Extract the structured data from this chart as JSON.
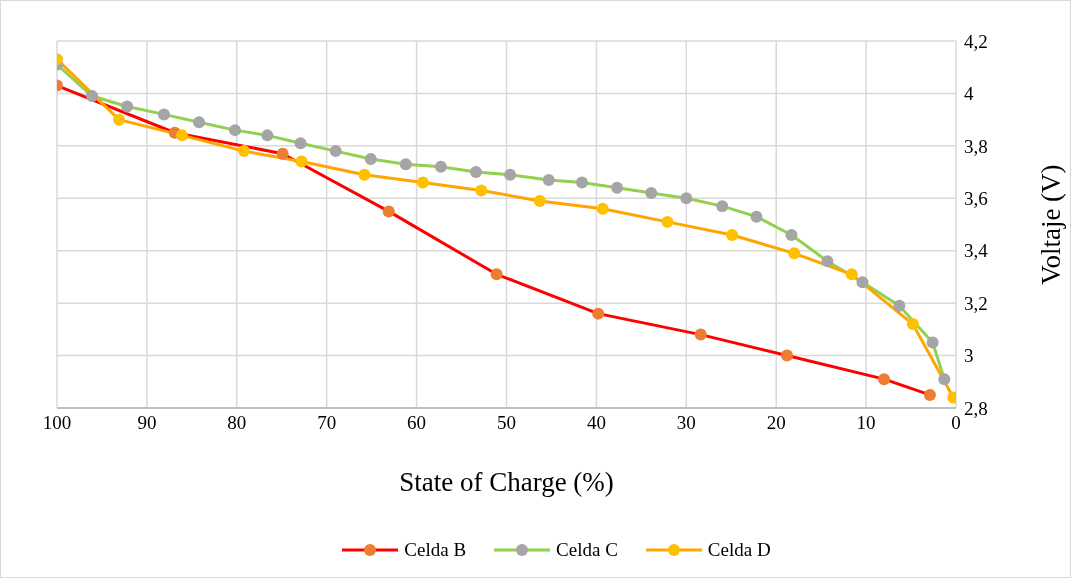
{
  "chart_data": {
    "type": "line",
    "xlabel": "State of Charge (%)",
    "ylabel": "Voltaje (V)",
    "xlim": [
      100,
      0
    ],
    "xticks": [
      100,
      90,
      80,
      70,
      60,
      50,
      40,
      30,
      20,
      10,
      0
    ],
    "ylim": [
      2.8,
      4.2
    ],
    "yticks": [
      {
        "value": 2.8,
        "label": "2,8"
      },
      3,
      {
        "value": 3.2,
        "label": "3,2"
      },
      {
        "value": 3.4,
        "label": "3,4"
      },
      {
        "value": 3.6,
        "label": "3,6"
      },
      {
        "value": 3.8,
        "label": "3,8"
      },
      4,
      {
        "value": 4.2,
        "label": "4,2"
      }
    ],
    "grid": true,
    "legend": "bottom",
    "marker": "circle",
    "line_style": "solid",
    "series": [
      {
        "name": "Celda B",
        "color": "#ff0000",
        "colors": [
          "#ed7d31",
          "#ed7d31",
          "#ed7d31",
          "#ed7d31",
          "#ed7d31",
          "#ed7d31",
          "#ed7d31",
          "#ed7d31",
          "#ed7d31",
          "#ed7d31"
        ],
        "x": [
          100,
          86.9,
          74.9,
          63.1,
          51.1,
          39.8,
          28.4,
          18.8,
          8.0,
          2.9
        ],
        "values": [
          4.03,
          3.85,
          3.77,
          3.55,
          3.31,
          3.16,
          3.08,
          3.0,
          2.91,
          2.85
        ]
      },
      {
        "name": "Celda C",
        "color": "#92d050",
        "colors": [
          "#a5a5a5",
          "#a5a5a5",
          "#a5a5a5",
          "#a5a5a5",
          "#a5a5a5",
          "#a5a5a5",
          "#a5a5a5",
          "#a5a5a5",
          "#a5a5a5",
          "#a5a5a5",
          "#a5a5a5",
          "#a5a5a5",
          "#a5a5a5",
          "#a5a5a5",
          "#a5a5a5",
          "#a5a5a5",
          "#a5a5a5",
          "#a5a5a5",
          "#a5a5a5",
          "#a5a5a5",
          "#a5a5a5",
          "#a5a5a5",
          "#a5a5a5",
          "#a5a5a5",
          "#a5a5a5",
          "#a5a5a5",
          "#a5a5a5"
        ],
        "x": [
          100,
          96.1,
          92.2,
          88.1,
          84.2,
          80.2,
          76.6,
          72.9,
          69.0,
          65.1,
          61.2,
          57.3,
          53.4,
          49.6,
          45.3,
          41.6,
          37.7,
          33.9,
          30.0,
          26.0,
          22.2,
          18.3,
          14.3,
          10.4,
          6.3,
          2.6,
          1.3
        ],
        "values": [
          4.11,
          3.99,
          3.95,
          3.92,
          3.89,
          3.86,
          3.84,
          3.81,
          3.78,
          3.75,
          3.73,
          3.72,
          3.7,
          3.69,
          3.67,
          3.66,
          3.64,
          3.62,
          3.6,
          3.57,
          3.53,
          3.46,
          3.36,
          3.28,
          3.19,
          3.05,
          2.91
        ]
      },
      {
        "name": "Celda D",
        "color": "#ffa500",
        "colors": [
          "#ffc000",
          "#ffc000",
          "#ffc000",
          "#ffc000",
          "#ffc000",
          "#ffc000",
          "#ffc000",
          "#ffc000",
          "#ffc000",
          "#ffc000",
          "#ffc000",
          "#ffc000",
          "#ffc000",
          "#ffc000",
          "#ffc000",
          "#ffc000"
        ],
        "x": [
          100,
          93.1,
          86.1,
          79.2,
          72.8,
          65.8,
          59.3,
          52.8,
          46.3,
          39.3,
          32.1,
          24.9,
          18.0,
          11.6,
          4.8,
          0.3
        ],
        "values": [
          4.13,
          3.9,
          3.84,
          3.78,
          3.74,
          3.69,
          3.66,
          3.63,
          3.59,
          3.56,
          3.51,
          3.46,
          3.39,
          3.31,
          3.12,
          2.84
        ]
      }
    ]
  }
}
